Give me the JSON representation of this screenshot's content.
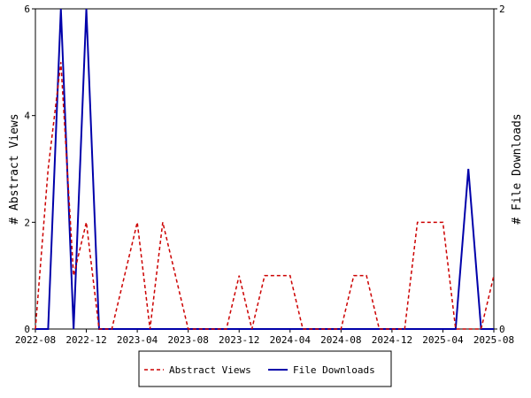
{
  "chart_data": {
    "type": "line",
    "categories": [
      "2022-08",
      null,
      null,
      null,
      "2022-12",
      null,
      null,
      null,
      "2023-04",
      null,
      null,
      null,
      "2023-08",
      null,
      null,
      null,
      "2023-12",
      null,
      null,
      null,
      "2024-04",
      null,
      null,
      null,
      "2024-08",
      null,
      null,
      null,
      "2024-12",
      null,
      null,
      null,
      "2025-04",
      null,
      null,
      null,
      "2025-08"
    ],
    "series": [
      {
        "name": "Abstract Views",
        "color": "#cc0000",
        "dash": true,
        "axis": "y",
        "values": [
          0,
          3,
          5,
          1,
          2,
          0,
          0,
          1,
          2,
          0,
          2,
          1,
          0,
          0,
          0,
          0,
          1,
          0,
          1,
          1,
          1,
          0,
          0,
          0,
          0,
          1,
          1,
          0,
          0,
          0,
          2,
          2,
          2,
          0,
          0,
          0,
          1
        ]
      },
      {
        "name": "File Downloads",
        "color": "#0000aa",
        "dash": false,
        "axis": "y2",
        "values": [
          0,
          0,
          2,
          0,
          2,
          0,
          0,
          0,
          0,
          0,
          0,
          0,
          0,
          0,
          0,
          0,
          0,
          0,
          0,
          0,
          0,
          0,
          0,
          0,
          0,
          0,
          0,
          0,
          0,
          0,
          0,
          0,
          0,
          0,
          1,
          0,
          0
        ]
      }
    ],
    "ylabel": "# Abstract Views",
    "y2label": "# File Downloads",
    "ylim": [
      0,
      6
    ],
    "yticks": [
      0,
      2,
      4,
      6
    ],
    "y2lim": [
      0,
      2
    ],
    "y2ticks": [
      0,
      2
    ]
  }
}
